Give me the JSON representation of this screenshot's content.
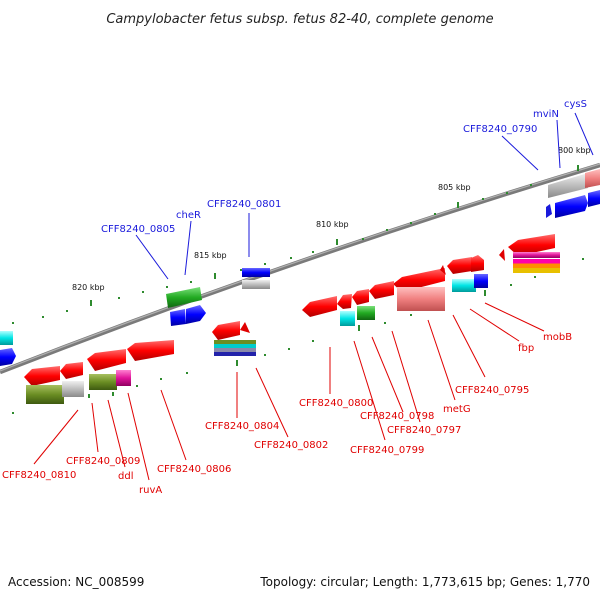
{
  "title": "Campylobacter fetus subsp. fetus 82-40, complete genome",
  "accession_label": "Accession: NC_008599",
  "topology_label": "Topology: circular; Length: 1,773,615 bp; Genes: 1,770",
  "colors": {
    "backbone": "#7a7a7a",
    "tick": "#2e8b2e",
    "reverse_strand": "#e00000",
    "forward_strand": "#1a1adb"
  },
  "scale_labels": [
    "800 kbp",
    "805 kbp",
    "810 kbp",
    "815 kbp",
    "820 kbp"
  ],
  "gene_labels_forward": [
    "cysS",
    "mviN",
    "CFF8240_0790",
    "CFF8240_0801",
    "cheR",
    "CFF8240_0805"
  ],
  "gene_labels_reverse": [
    "mobB",
    "fbp",
    "CFF8240_0795",
    "metG",
    "CFF8240_0797",
    "CFF8240_0798",
    "CFF8240_0799",
    "CFF8240_0800",
    "CFF8240_0802",
    "CFF8240_0804",
    "CFF8240_0806",
    "ruvA",
    "ddl",
    "CFF8240_0809",
    "CFF8240_0810"
  ]
}
